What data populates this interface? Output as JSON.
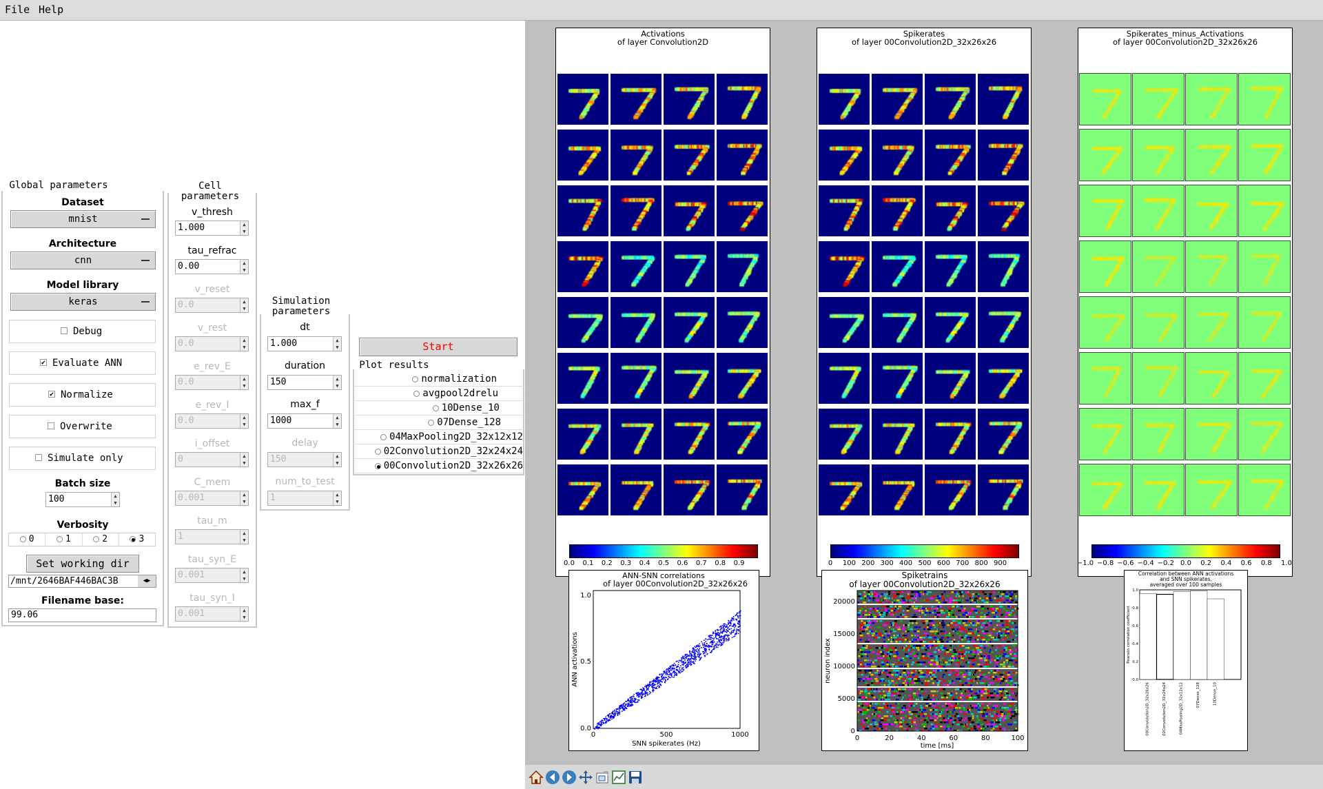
{
  "menu": {
    "file": "File",
    "help": "Help"
  },
  "global": {
    "title": "Global parameters",
    "dataset_label": "Dataset",
    "dataset_value": "mnist",
    "architecture_label": "Architecture",
    "architecture_value": "cnn",
    "library_label": "Model library",
    "library_value": "keras",
    "debug": "Debug",
    "evaluate_ann": "Evaluate ANN",
    "normalize": "Normalize",
    "overwrite": "Overwrite",
    "simulate_only": "Simulate only",
    "batch_label": "Batch size",
    "batch_value": "100",
    "verbosity_label": "Verbosity",
    "verbosity_options": [
      "0",
      "1",
      "2",
      "3"
    ],
    "verbosity_selected": "3",
    "set_dir": "Set working dir",
    "working_dir": "/mnt/2646BAF446BAC3B",
    "filename_label": "Filename base:",
    "filename_value": "99.06",
    "checks": {
      "debug": false,
      "evaluate_ann": true,
      "normalize": true,
      "overwrite": false,
      "simulate_only": false
    }
  },
  "cell": {
    "title": "Cell parameters",
    "params": [
      {
        "label": "v_thresh",
        "value": "1.000",
        "enabled": true
      },
      {
        "label": "tau_refrac",
        "value": "0.00",
        "enabled": true
      },
      {
        "label": "v_reset",
        "value": "0.0",
        "enabled": false
      },
      {
        "label": "v_rest",
        "value": "0.0",
        "enabled": false
      },
      {
        "label": "e_rev_E",
        "value": "0.0",
        "enabled": false
      },
      {
        "label": "e_rev_I",
        "value": "0.0",
        "enabled": false
      },
      {
        "label": "i_offset",
        "value": "0",
        "enabled": false
      },
      {
        "label": "C_mem",
        "value": "0.001",
        "enabled": false
      },
      {
        "label": "tau_m",
        "value": "1",
        "enabled": false
      },
      {
        "label": "tau_syn_E",
        "value": "0.001",
        "enabled": false
      },
      {
        "label": "tau_syn_I",
        "value": "0.001",
        "enabled": false
      }
    ]
  },
  "sim": {
    "title": "Simulation parameters",
    "params": [
      {
        "label": "dt",
        "value": "1.000",
        "enabled": true
      },
      {
        "label": "duration",
        "value": "150",
        "enabled": true
      },
      {
        "label": "max_f",
        "value": "1000",
        "enabled": true
      },
      {
        "label": "delay",
        "value": "150",
        "enabled": false
      },
      {
        "label": "num_to_test",
        "value": "1",
        "enabled": false
      }
    ]
  },
  "start": "Start",
  "plot_results": {
    "title": "Plot results",
    "items": [
      "normalization",
      "avgpool2drelu",
      "10Dense_10",
      "07Dense_128",
      "04MaxPooling2D_32x12x12",
      "02Convolution2D_32x24x24",
      "00Convolution2D_32x26x26"
    ],
    "selected": "00Convolution2D_32x26x26"
  },
  "panels": {
    "act": {
      "title1": "Activations",
      "title2": "of layer Convolution2D",
      "ticks": [
        "0.0",
        "0.1",
        "0.2",
        "0.3",
        "0.4",
        "0.5",
        "0.6",
        "0.7",
        "0.8",
        "0.9"
      ]
    },
    "spk": {
      "title1": "Spikerates",
      "title2": "of layer 00Convolution2D_32x26x26",
      "ticks": [
        "0",
        "100",
        "200",
        "300",
        "400",
        "500",
        "600",
        "700",
        "800",
        "900"
      ]
    },
    "diff": {
      "title1": "Spikerates_minus_Activations",
      "title2": "of layer 00Convolution2D_32x26x26",
      "ticks": [
        "−1.0",
        "−0.8",
        "−0.6",
        "−0.4",
        "−0.2",
        "0.0",
        "0.2",
        "0.4",
        "0.6",
        "0.8",
        "1.0"
      ]
    }
  },
  "colors": {
    "jet_low": "#00007f",
    "figure_bg": "#bfbfbf",
    "diff_bg": "#80ff7a",
    "start_text": "#ff0000",
    "scatter": "#0000ff"
  },
  "icons": [
    "home-icon",
    "back-icon",
    "forward-icon",
    "pan-icon",
    "zoom-icon",
    "configure-subplots-icon",
    "save-icon"
  ],
  "chart_data": [
    {
      "type": "scatter",
      "title": "ANN-SNN correlations",
      "subtitle": "of layer 00Convolution2D_32x26x26",
      "xlabel": "SNN spikerates (Hz)",
      "ylabel": "ANN activations",
      "xlim": [
        0,
        1000
      ],
      "ylim": [
        0,
        1.0
      ],
      "xticks": [
        "0",
        "500",
        "1000"
      ],
      "yticks": [
        "0.0",
        "0.5",
        "1.0"
      ],
      "trend": [
        [
          0,
          0.0
        ],
        [
          100,
          0.07
        ],
        [
          200,
          0.15
        ],
        [
          300,
          0.23
        ],
        [
          400,
          0.31
        ],
        [
          500,
          0.39
        ],
        [
          600,
          0.47
        ],
        [
          700,
          0.55
        ],
        [
          800,
          0.62
        ],
        [
          900,
          0.7
        ],
        [
          1000,
          0.78
        ]
      ]
    },
    {
      "type": "scatter",
      "title": "Spiketrains",
      "subtitle": "of layer 00Convolution2D_32x26x26",
      "xlabel": "time [ms]",
      "ylabel": "neuron index",
      "xlim": [
        0,
        100
      ],
      "ylim": [
        0,
        21632
      ],
      "xticks": [
        "0",
        "20",
        "40",
        "60",
        "80",
        "100"
      ],
      "yticks": [
        "0",
        "5000",
        "10000",
        "15000",
        "20000"
      ]
    },
    {
      "type": "bar",
      "title": "Correlation between ANN activations",
      "subtitle": "and SNN spikerates,",
      "subtitle2": "averaged over 100 samples",
      "ylabel": "Pearson correlation coefficient",
      "categories": [
        "00Convolution2D_32x26x26",
        "02Convolution2D_32x24x24",
        "04MaxPooling2D_32x12x12",
        "07Dense_128",
        "10Dense_10"
      ],
      "values": [
        0.96,
        0.95,
        0.98,
        0.99,
        0.9
      ],
      "ylim": [
        0,
        1.0
      ],
      "yticks": [
        "0.0",
        "0.2",
        "0.4",
        "0.6",
        "0.8",
        "1.0"
      ]
    }
  ]
}
